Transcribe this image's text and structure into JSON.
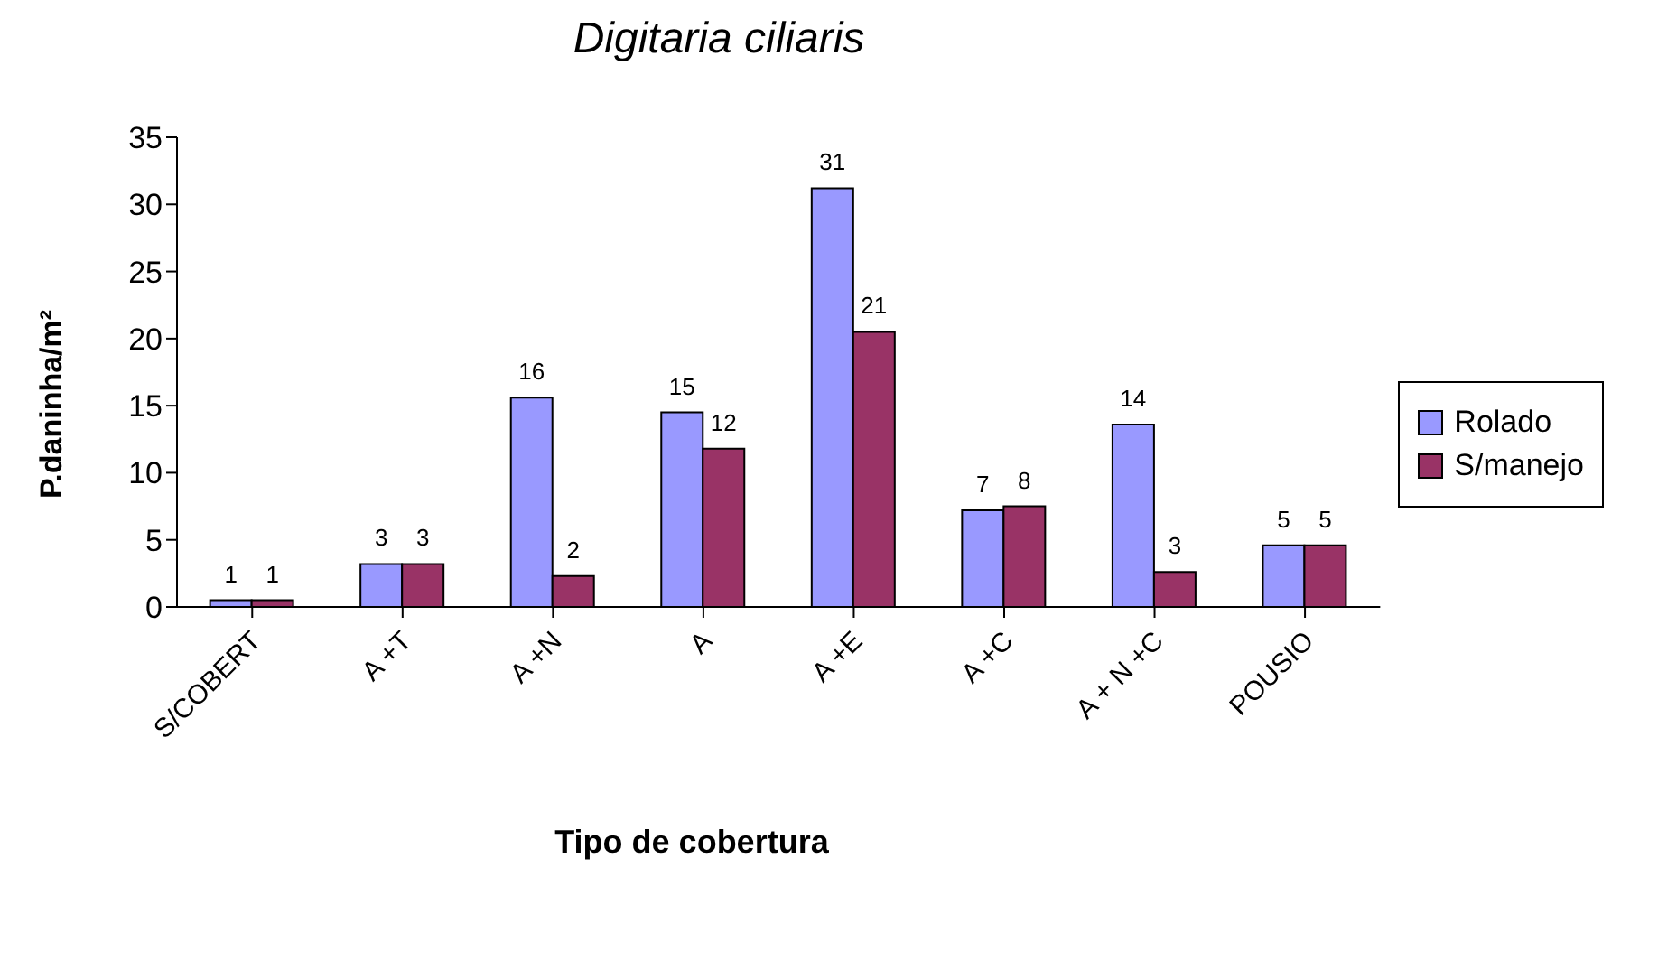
{
  "chart_data": {
    "type": "bar",
    "title": "Digitaria ciliaris",
    "xlabel": "Tipo de cobertura",
    "ylabel": "P.daninha/m²",
    "categories": [
      "S/COBERT",
      "A +T",
      "A +N",
      "A",
      "A +E",
      "A +C",
      "A + N +C",
      "POUSIO"
    ],
    "series": [
      {
        "name": "Rolado",
        "color": "#9999ff",
        "values": [
          0.5,
          3.2,
          15.6,
          14.5,
          31.2,
          7.2,
          13.6,
          4.6
        ],
        "value_labels": [
          "1",
          "3",
          "16",
          "15",
          "31",
          "7",
          "14",
          "5"
        ]
      },
      {
        "name": "S/manejo",
        "color": "#993366",
        "values": [
          0.5,
          3.2,
          2.3,
          11.8,
          20.5,
          7.5,
          2.6,
          4.6
        ],
        "value_labels": [
          "1",
          "3",
          "2",
          "12",
          "21",
          "8",
          "3",
          "5"
        ]
      }
    ],
    "ylim": [
      0,
      35
    ],
    "yticks": [
      0,
      5,
      10,
      15,
      20,
      25,
      30,
      35
    ],
    "grid": false,
    "legend": "right"
  }
}
